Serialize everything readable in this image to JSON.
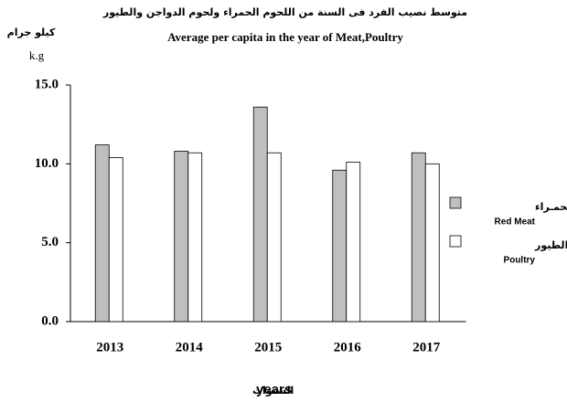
{
  "chart_data": {
    "type": "bar",
    "title": "متوسط نصيب الفرد فى السنة من اللحوم الحمراء ولحوم الدواجن والطيور",
    "subtitle": "Average per capita in the year of Meat,Poultry",
    "y_label": "كيلو جرام",
    "y_unit": "k.g",
    "x_label_ar": "السنوات",
    "x_label": "years",
    "categories": [
      "2013",
      "2014",
      "2015",
      "2016",
      "2017"
    ],
    "series": [
      {
        "name": "اللحـوم الحمـراء",
        "name_en": "Red Meat",
        "color": "#bfbfbf",
        "values": [
          11.2,
          10.8,
          13.6,
          9.6,
          10.7
        ]
      },
      {
        "name": "لحوم الدواجن والطيور",
        "name_en": "Poultry",
        "color": "#ffffff",
        "values": [
          10.4,
          10.7,
          10.7,
          10.1,
          10.0
        ]
      }
    ],
    "ylim": [
      0,
      15
    ],
    "yticks": [
      {
        "value": 0,
        "label": "0.0"
      },
      {
        "value": 5,
        "label": "5.0"
      },
      {
        "value": 10,
        "label": "10.0"
      },
      {
        "value": 15,
        "label": "15.0"
      }
    ],
    "grid": false,
    "legend": "right"
  }
}
